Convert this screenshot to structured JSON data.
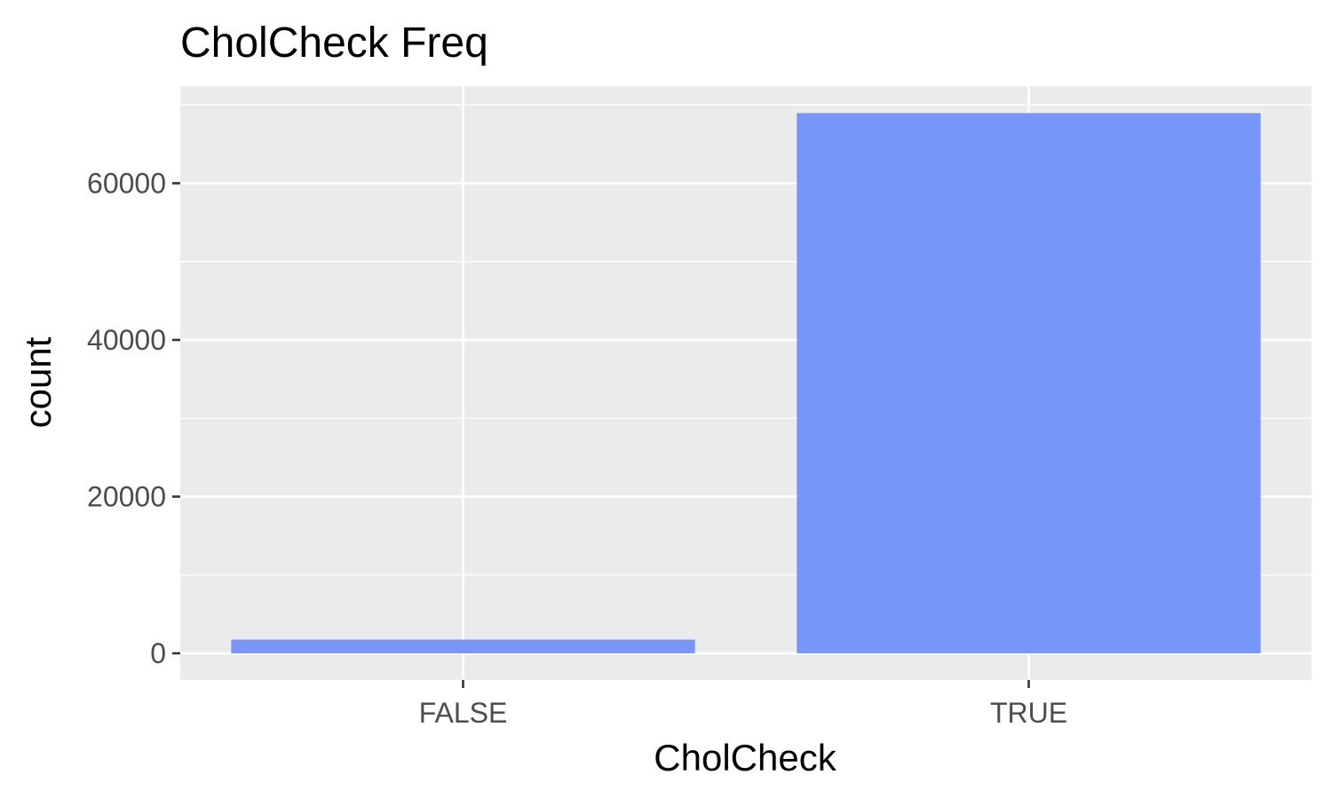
{
  "chart_data": {
    "type": "bar",
    "title": "CholCheck Freq",
    "xlabel": "CholCheck",
    "ylabel": "count",
    "categories": [
      "FALSE",
      "TRUE"
    ],
    "values": [
      1750,
      68950
    ],
    "ylim": [
      -3400,
      72400
    ],
    "y_ticks": [
      0,
      20000,
      40000,
      60000
    ],
    "y_tick_labels": [
      "0",
      "20000",
      "40000",
      "60000"
    ],
    "grid": true,
    "legend": "none",
    "colors": {
      "bar": "#7393fa",
      "panel": "#ebebeb",
      "grid": "#ffffff",
      "tick_text": "#4d4d4d",
      "tick_mark": "#333333"
    }
  }
}
